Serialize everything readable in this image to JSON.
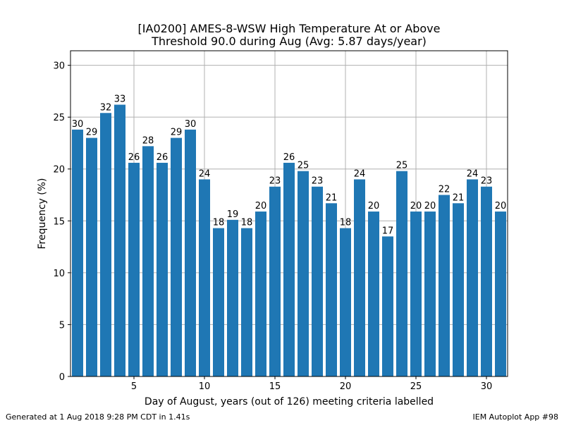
{
  "footer": {
    "generated": "Generated at 1 Aug 2018 9:28 PM CDT in 1.41s",
    "app": "IEM Autoplot App #98"
  },
  "colors": {
    "bar": "#1f77b4",
    "grid": "#b0b0b0"
  },
  "chart_data": {
    "type": "bar",
    "title_lines": [
      "[IA0200] AMES-8-WSW High Temperature At or Above",
      "Threshold 90.0 during Aug (Avg: 5.87 days/year)"
    ],
    "xlabel": "Day of August, years (out of 126) meeting criteria labelled",
    "ylabel": "Frequency (%)",
    "xlim": [
      0.5,
      31.5
    ],
    "ylim": [
      0,
      31.4
    ],
    "xticks": [
      5,
      10,
      15,
      20,
      25,
      30
    ],
    "yticks": [
      0,
      5,
      10,
      15,
      20,
      25,
      30
    ],
    "grid": true,
    "x": [
      1,
      2,
      3,
      4,
      5,
      6,
      7,
      8,
      9,
      10,
      11,
      12,
      13,
      14,
      15,
      16,
      17,
      18,
      19,
      20,
      21,
      22,
      23,
      24,
      25,
      26,
      27,
      28,
      29,
      30,
      31
    ],
    "labels": [
      30,
      29,
      32,
      33,
      26,
      28,
      26,
      29,
      30,
      24,
      18,
      19,
      18,
      20,
      23,
      26,
      25,
      23,
      21,
      18,
      24,
      20,
      17,
      25,
      20,
      20,
      22,
      21,
      24,
      23,
      20
    ],
    "values": [
      23.8,
      23.0,
      25.4,
      26.2,
      20.6,
      22.2,
      20.6,
      23.0,
      23.8,
      19.0,
      14.3,
      15.1,
      14.3,
      15.9,
      18.3,
      20.6,
      19.8,
      18.3,
      16.7,
      14.3,
      19.0,
      15.9,
      13.5,
      19.8,
      15.9,
      15.9,
      17.5,
      16.7,
      19.0,
      18.3,
      15.9
    ]
  }
}
